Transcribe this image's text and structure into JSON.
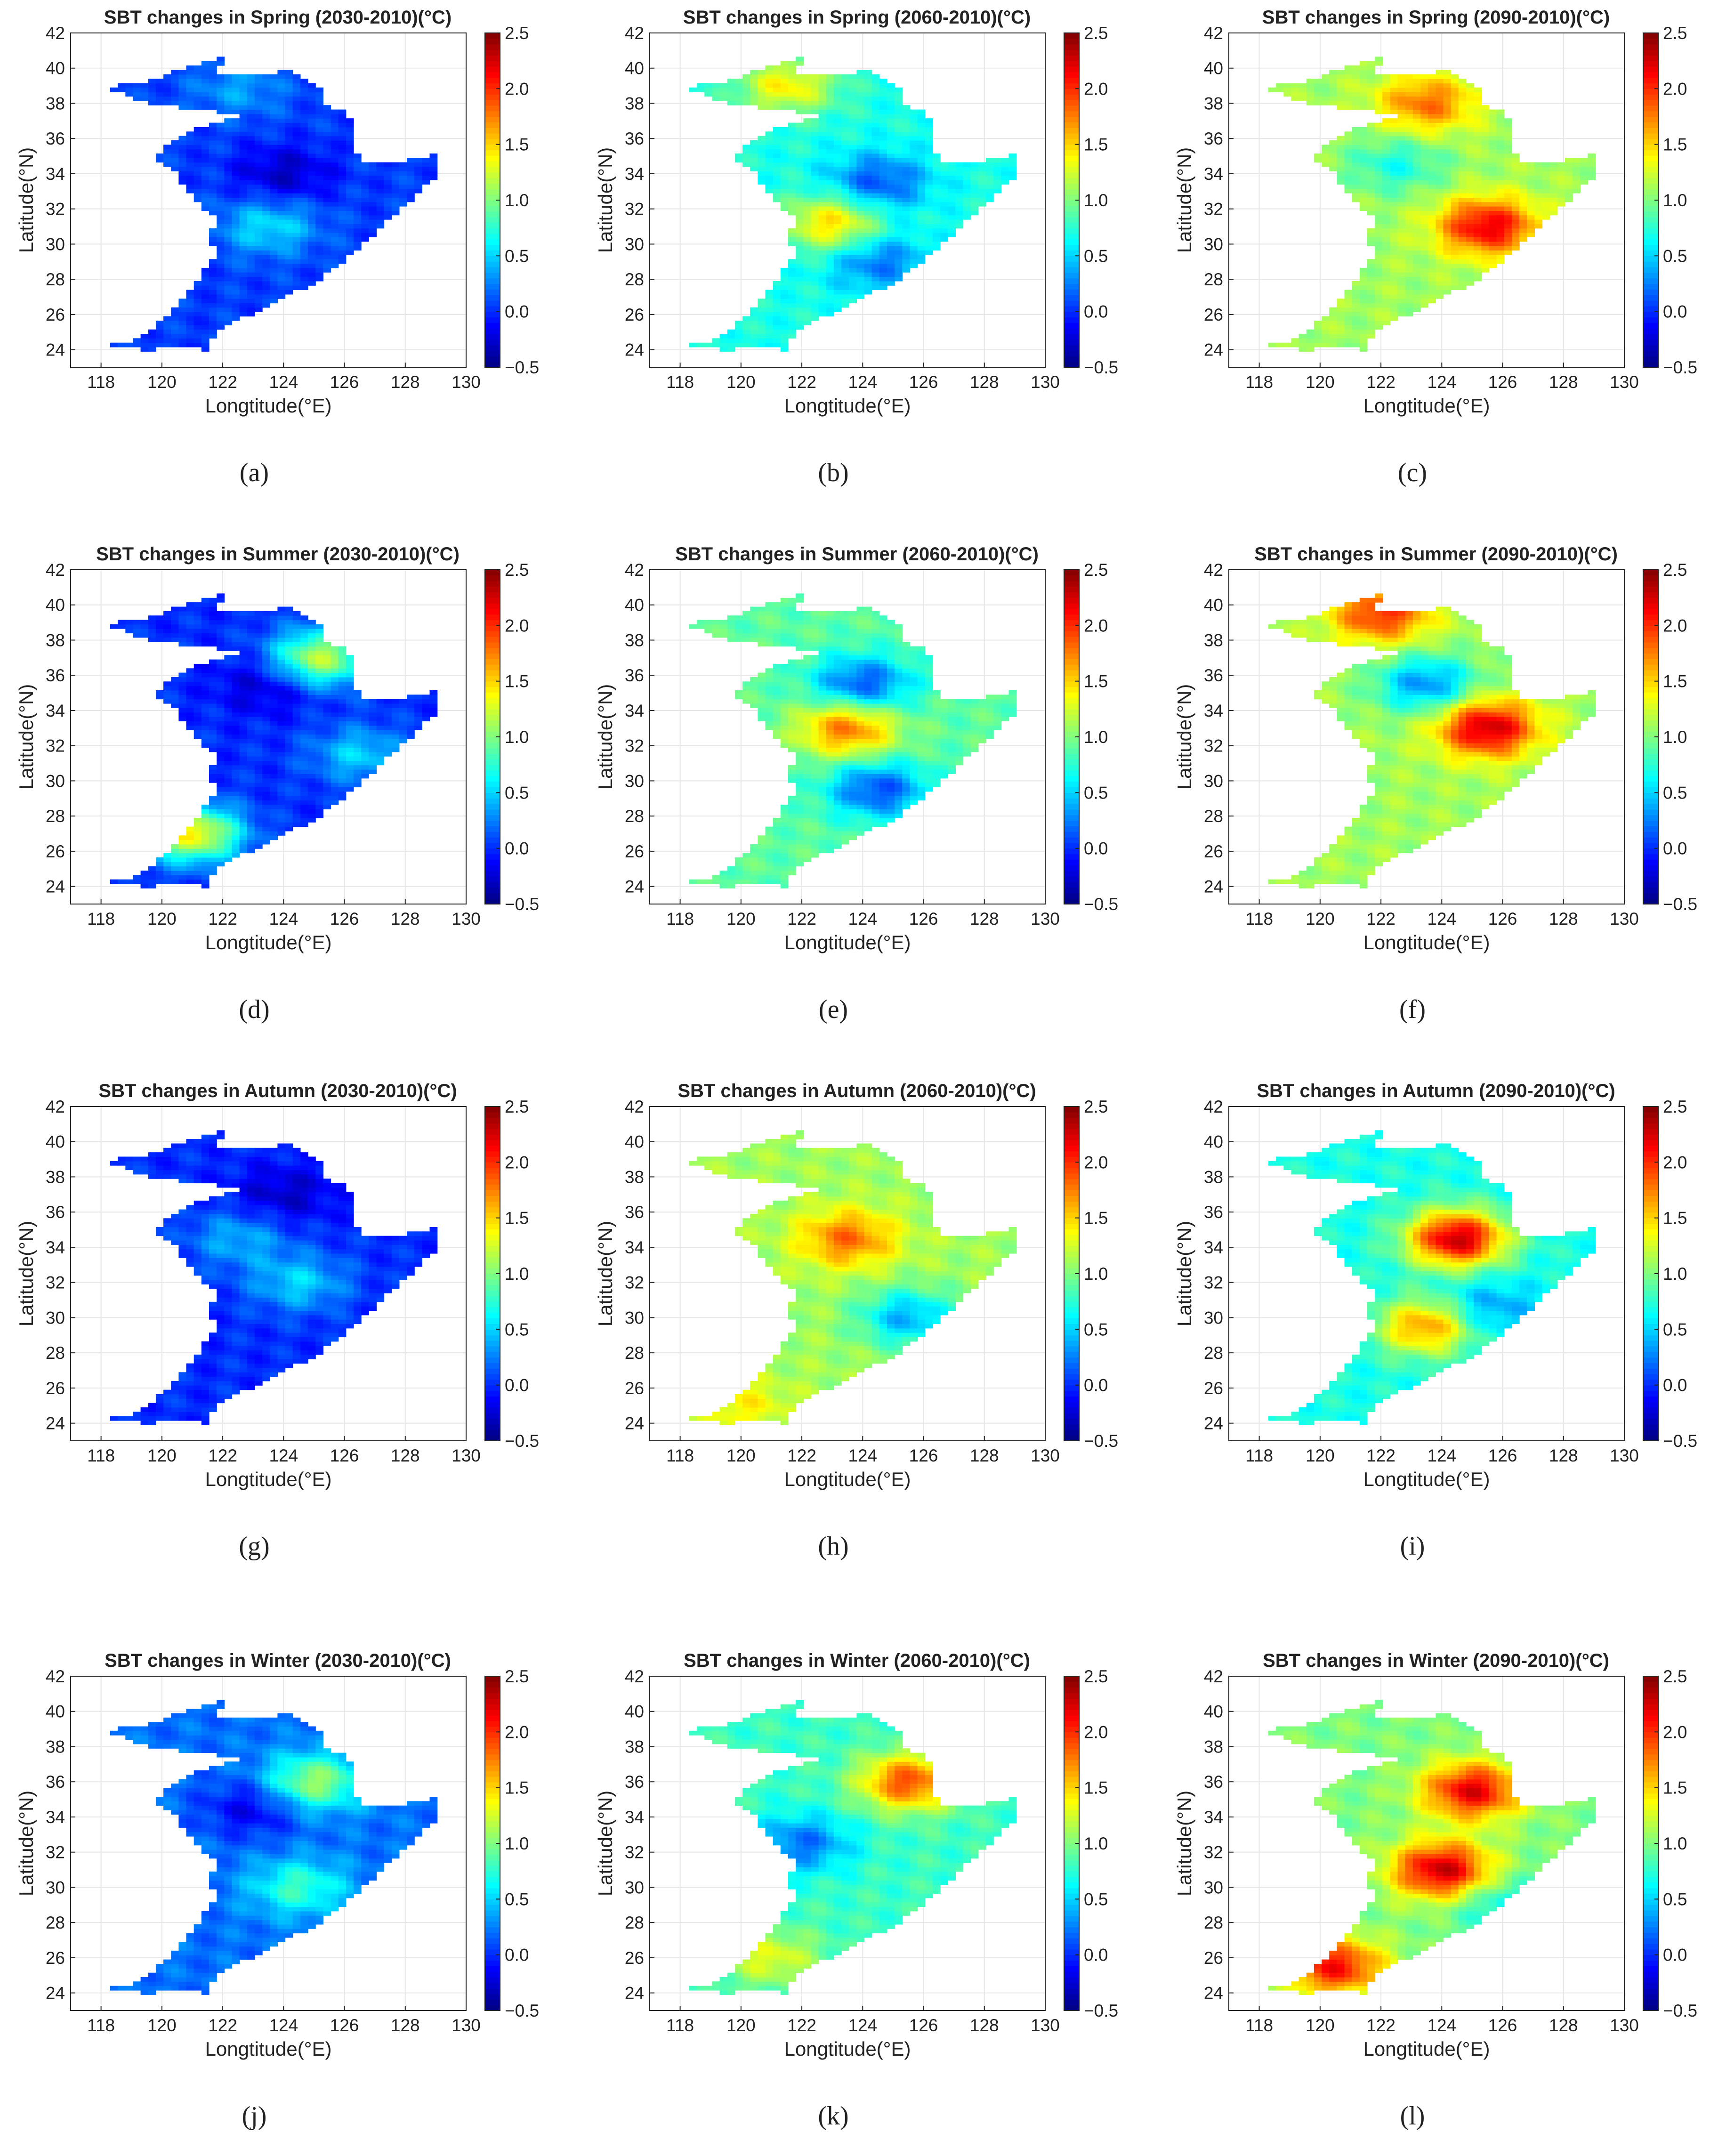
{
  "colormap": {
    "name": "jet",
    "stops": [
      "#00007f",
      "#0000ff",
      "#007fff",
      "#00ffff",
      "#7fff7f",
      "#ffff00",
      "#ff7f00",
      "#ff0000",
      "#7f0000"
    ],
    "domain": [
      -0.5,
      2.5
    ]
  },
  "chart_data": [
    {
      "id": "a",
      "caption": "(a)",
      "type": "heatmap",
      "title": "SBT changes in Spring (2030-2010)(°C)",
      "season": "Spring",
      "period": "2030-2010",
      "xlabel": "Longtitude(°E)",
      "ylabel": "Latitude(°N)",
      "xlim": [
        117,
        130
      ],
      "ylim": [
        23,
        42
      ],
      "xticks": [
        "118",
        "120",
        "122",
        "124",
        "126",
        "128",
        "130"
      ],
      "yticks": [
        "24",
        "26",
        "28",
        "30",
        "32",
        "34",
        "36",
        "38",
        "40",
        "42"
      ],
      "colorbar": {
        "ticks": [
          "-0.5",
          "0.0",
          "0.5",
          "1.0",
          "1.5",
          "2.0",
          "2.5"
        ],
        "range": [
          -0.5,
          2.5
        ]
      },
      "base_value": 0.05,
      "features": [
        {
          "lon": 124,
          "lat": 34,
          "value": -0.3
        },
        {
          "lon": 122.5,
          "lat": 38.8,
          "value": 0.35
        },
        {
          "lon": 123.5,
          "lat": 31,
          "value": 0.55
        }
      ]
    },
    {
      "id": "b",
      "caption": "(b)",
      "type": "heatmap",
      "title": "SBT changes in Spring (2060-2010)(°C)",
      "season": "Spring",
      "period": "2060-2010",
      "xlabel": "Longtitude(°E)",
      "ylabel": "Latitude(°N)",
      "xlim": [
        117,
        130
      ],
      "ylim": [
        23,
        42
      ],
      "xticks": [
        "118",
        "120",
        "122",
        "124",
        "126",
        "128",
        "130"
      ],
      "yticks": [
        "24",
        "26",
        "28",
        "30",
        "32",
        "34",
        "36",
        "38",
        "40",
        "42"
      ],
      "colorbar": {
        "ticks": [
          "-0.5",
          "0.0",
          "0.5",
          "1.0",
          "1.5",
          "2.0",
          "2.5"
        ],
        "range": [
          -0.5,
          2.5
        ]
      },
      "base_value": 0.7,
      "features": [
        {
          "lon": 124.5,
          "lat": 33.5,
          "value": 0.1
        },
        {
          "lon": 123,
          "lat": 31.2,
          "value": 1.5
        },
        {
          "lon": 121.5,
          "lat": 39,
          "value": 1.4
        },
        {
          "lon": 124.5,
          "lat": 29,
          "value": 0.2
        }
      ]
    },
    {
      "id": "c",
      "caption": "(c)",
      "type": "heatmap",
      "title": "SBT changes in Spring (2090-2010)(°C)",
      "season": "Spring",
      "period": "2090-2010",
      "xlabel": "Longtitude(°E)",
      "ylabel": "Latitude(°N)",
      "xlim": [
        117,
        130
      ],
      "ylim": [
        23,
        42
      ],
      "xticks": [
        "118",
        "120",
        "122",
        "124",
        "126",
        "128",
        "130"
      ],
      "yticks": [
        "24",
        "26",
        "28",
        "30",
        "32",
        "34",
        "36",
        "38",
        "40",
        "42"
      ],
      "colorbar": {
        "ticks": [
          "-0.5",
          "0.0",
          "0.5",
          "1.0",
          "1.5",
          "2.0",
          "2.5"
        ],
        "range": [
          -0.5,
          2.5
        ]
      },
      "base_value": 1.1,
      "features": [
        {
          "lon": 125.5,
          "lat": 31,
          "value": 2.2
        },
        {
          "lon": 123.5,
          "lat": 38,
          "value": 1.8
        },
        {
          "lon": 122.5,
          "lat": 34.5,
          "value": 0.7
        }
      ]
    },
    {
      "id": "d",
      "caption": "(d)",
      "type": "heatmap",
      "title": "SBT changes in Summer (2030-2010)(°C)",
      "season": "Summer",
      "period": "2030-2010",
      "xlabel": "Longtitude(°E)",
      "ylabel": "Latitude(°N)",
      "xlim": [
        117,
        130
      ],
      "ylim": [
        23,
        42
      ],
      "xticks": [
        "118",
        "120",
        "122",
        "124",
        "126",
        "128",
        "130"
      ],
      "yticks": [
        "24",
        "26",
        "28",
        "30",
        "32",
        "34",
        "36",
        "38",
        "40",
        "42"
      ],
      "colorbar": {
        "ticks": [
          "-0.5",
          "0.0",
          "0.5",
          "1.0",
          "1.5",
          "2.0",
          "2.5"
        ],
        "range": [
          -0.5,
          2.5
        ]
      },
      "base_value": 0.0,
      "features": [
        {
          "lon": 123.5,
          "lat": 35.5,
          "value": -0.3
        },
        {
          "lon": 126.5,
          "lat": 31.5,
          "value": 0.5
        },
        {
          "lon": 121,
          "lat": 27,
          "value": 1.4
        },
        {
          "lon": 125.2,
          "lat": 37,
          "value": 1.2
        }
      ]
    },
    {
      "id": "e",
      "caption": "(e)",
      "type": "heatmap",
      "title": "SBT changes in Summer (2060-2010)(°C)",
      "season": "Summer",
      "period": "2060-2010",
      "xlabel": "Longtitude(°E)",
      "ylabel": "Latitude(°N)",
      "xlim": [
        117,
        130
      ],
      "ylim": [
        23,
        42
      ],
      "xticks": [
        "118",
        "120",
        "122",
        "124",
        "126",
        "128",
        "130"
      ],
      "yticks": [
        "24",
        "26",
        "28",
        "30",
        "32",
        "34",
        "36",
        "38",
        "40",
        "42"
      ],
      "colorbar": {
        "ticks": [
          "-0.5",
          "0.0",
          "0.5",
          "1.0",
          "1.5",
          "2.0",
          "2.5"
        ],
        "range": [
          -0.5,
          2.5
        ]
      },
      "base_value": 0.9,
      "features": [
        {
          "lon": 124,
          "lat": 35.5,
          "value": 0.1
        },
        {
          "lon": 123.5,
          "lat": 33,
          "value": 1.8
        },
        {
          "lon": 124.5,
          "lat": 29.5,
          "value": 0.1
        }
      ]
    },
    {
      "id": "f",
      "caption": "(f)",
      "type": "heatmap",
      "title": "SBT changes in Summer (2090-2010)(°C)",
      "season": "Summer",
      "period": "2090-2010",
      "xlabel": "Longtitude(°E)",
      "ylabel": "Latitude(°N)",
      "xlim": [
        117,
        130
      ],
      "ylim": [
        23,
        42
      ],
      "xticks": [
        "118",
        "120",
        "122",
        "124",
        "126",
        "128",
        "130"
      ],
      "yticks": [
        "24",
        "26",
        "28",
        "30",
        "32",
        "34",
        "36",
        "38",
        "40",
        "42"
      ],
      "colorbar": {
        "ticks": [
          "-0.5",
          "0.0",
          "0.5",
          "1.0",
          "1.5",
          "2.0",
          "2.5"
        ],
        "range": [
          -0.5,
          2.5
        ]
      },
      "base_value": 1.1,
      "features": [
        {
          "lon": 125.5,
          "lat": 33,
          "value": 2.3
        },
        {
          "lon": 123.5,
          "lat": 35.5,
          "value": 0.3
        },
        {
          "lon": 122,
          "lat": 39.5,
          "value": 2.0
        }
      ]
    },
    {
      "id": "g",
      "caption": "(g)",
      "type": "heatmap",
      "title": "SBT changes in Autumn (2030-2010)(°C)",
      "season": "Autumn",
      "period": "2030-2010",
      "xlabel": "Longtitude(°E)",
      "ylabel": "Latitude(°N)",
      "xlim": [
        117,
        130
      ],
      "ylim": [
        23,
        42
      ],
      "xticks": [
        "118",
        "120",
        "122",
        "124",
        "126",
        "128",
        "130"
      ],
      "yticks": [
        "24",
        "26",
        "28",
        "30",
        "32",
        "34",
        "36",
        "38",
        "40",
        "42"
      ],
      "colorbar": {
        "ticks": [
          "-0.5",
          "0.0",
          "0.5",
          "1.0",
          "1.5",
          "2.0",
          "2.5"
        ],
        "range": [
          -0.5,
          2.5
        ]
      },
      "base_value": 0.0,
      "features": [
        {
          "lon": 124,
          "lat": 37,
          "value": -0.3
        },
        {
          "lon": 124.5,
          "lat": 32,
          "value": 0.5
        },
        {
          "lon": 122.5,
          "lat": 34.5,
          "value": 0.4
        }
      ]
    },
    {
      "id": "h",
      "caption": "(h)",
      "type": "heatmap",
      "title": "SBT changes in Autumn (2060-2010)(°C)",
      "season": "Autumn",
      "period": "2060-2010",
      "xlabel": "Longtitude(°E)",
      "ylabel": "Latitude(°N)",
      "xlim": [
        117,
        130
      ],
      "ylim": [
        23,
        42
      ],
      "xticks": [
        "118",
        "120",
        "122",
        "124",
        "126",
        "128",
        "130"
      ],
      "yticks": [
        "24",
        "26",
        "28",
        "30",
        "32",
        "34",
        "36",
        "38",
        "40",
        "42"
      ],
      "colorbar": {
        "ticks": [
          "-0.5",
          "0.0",
          "0.5",
          "1.0",
          "1.5",
          "2.0",
          "2.5"
        ],
        "range": [
          -0.5,
          2.5
        ]
      },
      "base_value": 1.1,
      "features": [
        {
          "lon": 123.5,
          "lat": 34.5,
          "value": 1.8
        },
        {
          "lon": 125.5,
          "lat": 30,
          "value": 0.4
        },
        {
          "lon": 120,
          "lat": 25,
          "value": 1.4
        }
      ]
    },
    {
      "id": "i",
      "caption": "(i)",
      "type": "heatmap",
      "title": "SBT changes in Autumn (2090-2010)(°C)",
      "season": "Autumn",
      "period": "2090-2010",
      "xlabel": "Longtitude(°E)",
      "ylabel": "Latitude(°N)",
      "xlim": [
        117,
        130
      ],
      "ylim": [
        23,
        42
      ],
      "xticks": [
        "118",
        "120",
        "122",
        "124",
        "126",
        "128",
        "130"
      ],
      "yticks": [
        "24",
        "26",
        "28",
        "30",
        "32",
        "34",
        "36",
        "38",
        "40",
        "42"
      ],
      "colorbar": {
        "ticks": [
          "-0.5",
          "0.0",
          "0.5",
          "1.0",
          "1.5",
          "2.0",
          "2.5"
        ],
        "range": [
          -0.5,
          2.5
        ]
      },
      "base_value": 0.7,
      "features": [
        {
          "lon": 124.5,
          "lat": 34.5,
          "value": 2.3
        },
        {
          "lon": 123.5,
          "lat": 29.5,
          "value": 1.7
        },
        {
          "lon": 125.5,
          "lat": 30.5,
          "value": 0.3
        }
      ]
    },
    {
      "id": "j",
      "caption": "(j)",
      "type": "heatmap",
      "title": "SBT changes in Winter (2030-2010)(°C)",
      "season": "Winter",
      "period": "2030-2010",
      "xlabel": "Longtitude(°E)",
      "ylabel": "Latitude(°N)",
      "xlim": [
        117,
        130
      ],
      "ylim": [
        23,
        42
      ],
      "xticks": [
        "118",
        "120",
        "122",
        "124",
        "126",
        "128",
        "130"
      ],
      "yticks": [
        "24",
        "26",
        "28",
        "30",
        "32",
        "34",
        "36",
        "38",
        "40",
        "42"
      ],
      "colorbar": {
        "ticks": [
          "-0.5",
          "0.0",
          "0.5",
          "1.0",
          "1.5",
          "2.0",
          "2.5"
        ],
        "range": [
          -0.5,
          2.5
        ]
      },
      "base_value": 0.2,
      "features": [
        {
          "lon": 123,
          "lat": 34.5,
          "value": -0.2
        },
        {
          "lon": 124.5,
          "lat": 30,
          "value": 0.8
        },
        {
          "lon": 125,
          "lat": 36,
          "value": 1.1
        }
      ]
    },
    {
      "id": "k",
      "caption": "(k)",
      "type": "heatmap",
      "title": "SBT changes in Winter (2060-2010)(°C)",
      "season": "Winter",
      "period": "2060-2010",
      "xlabel": "Longtitude(°E)",
      "ylabel": "Latitude(°N)",
      "xlim": [
        117,
        130
      ],
      "ylim": [
        23,
        42
      ],
      "xticks": [
        "118",
        "120",
        "122",
        "124",
        "126",
        "128",
        "130"
      ],
      "yticks": [
        "24",
        "26",
        "28",
        "30",
        "32",
        "34",
        "36",
        "38",
        "40",
        "42"
      ],
      "colorbar": {
        "ticks": [
          "-0.5",
          "0.0",
          "0.5",
          "1.0",
          "1.5",
          "2.0",
          "2.5"
        ],
        "range": [
          -0.5,
          2.5
        ]
      },
      "base_value": 0.8,
      "features": [
        {
          "lon": 125.5,
          "lat": 36,
          "value": 1.9
        },
        {
          "lon": 122,
          "lat": 32.5,
          "value": 0.2
        },
        {
          "lon": 121,
          "lat": 26,
          "value": 1.3
        }
      ]
    },
    {
      "id": "l",
      "caption": "(l)",
      "type": "heatmap",
      "title": "SBT changes in Winter (2090-2010)(°C)",
      "season": "Winter",
      "period": "2090-2010",
      "xlabel": "Longtitude(°E)",
      "ylabel": "Latitude(°N)",
      "xlim": [
        117,
        130
      ],
      "ylim": [
        23,
        42
      ],
      "xticks": [
        "118",
        "120",
        "122",
        "124",
        "126",
        "128",
        "130"
      ],
      "yticks": [
        "24",
        "26",
        "28",
        "30",
        "32",
        "34",
        "36",
        "38",
        "40",
        "42"
      ],
      "colorbar": {
        "ticks": [
          "-0.5",
          "0.0",
          "0.5",
          "1.0",
          "1.5",
          "2.0",
          "2.5"
        ],
        "range": [
          -0.5,
          2.5
        ]
      },
      "base_value": 1.0,
      "features": [
        {
          "lon": 124,
          "lat": 31,
          "value": 2.3
        },
        {
          "lon": 125,
          "lat": 35.5,
          "value": 2.2
        },
        {
          "lon": 120.5,
          "lat": 25.5,
          "value": 2.1
        },
        {
          "lon": 126,
          "lat": 29,
          "value": 0.6
        }
      ]
    }
  ]
}
